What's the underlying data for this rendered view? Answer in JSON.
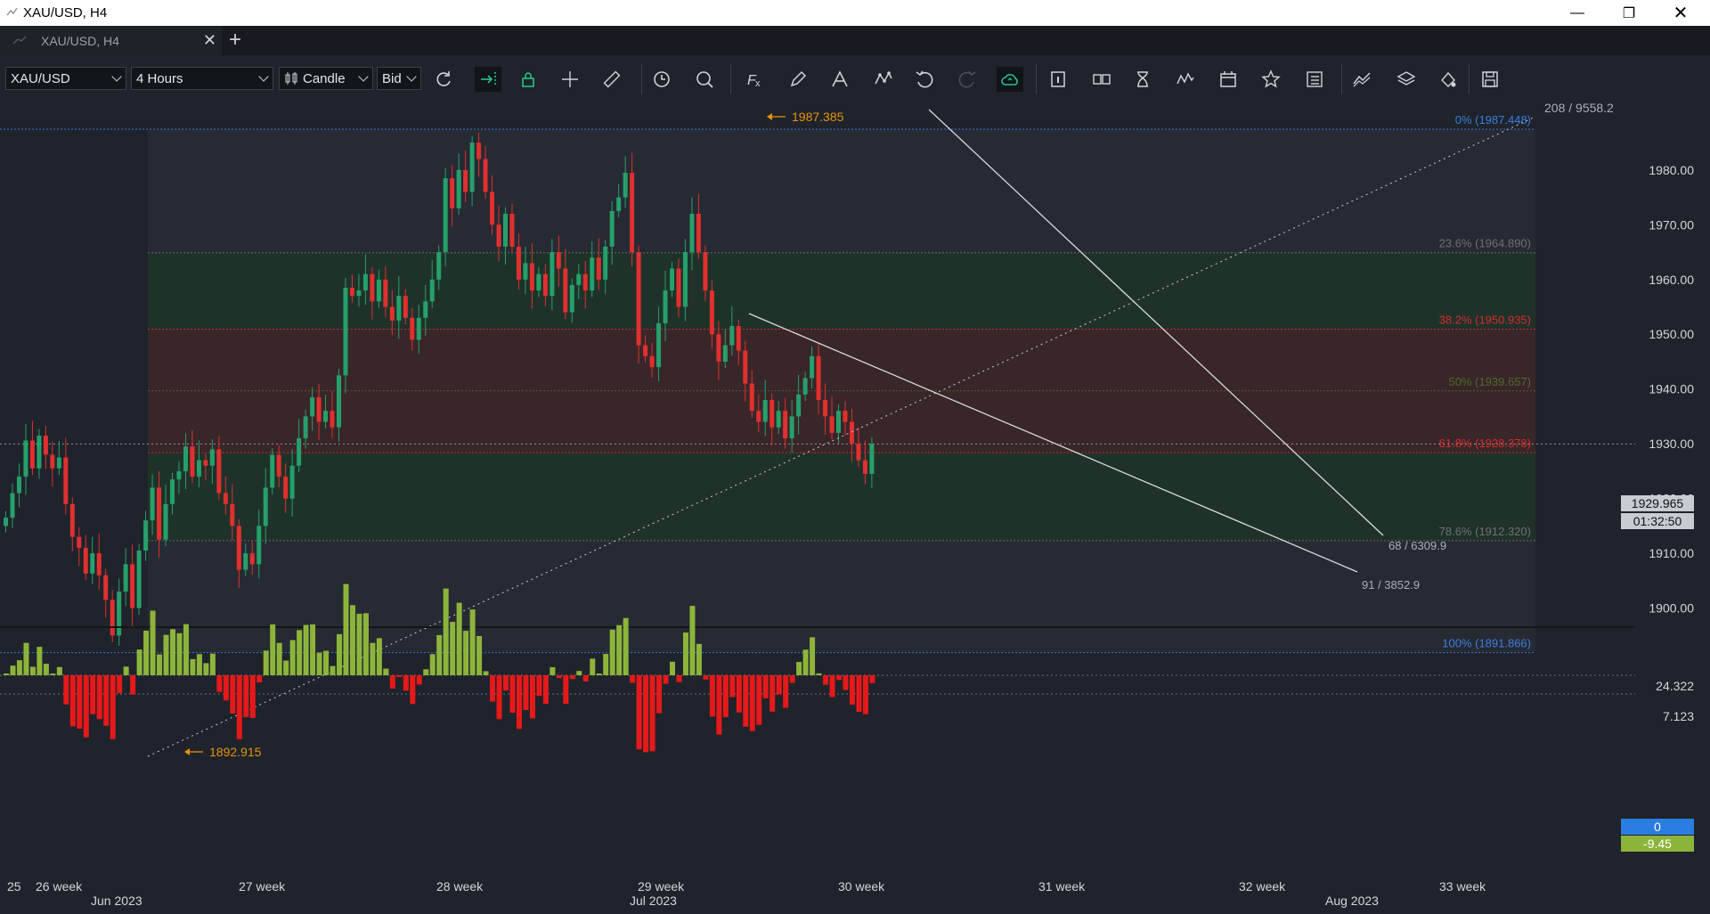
{
  "window": {
    "title": "XAU/USD, H4"
  },
  "tab": {
    "label": "XAU/USD, H4"
  },
  "toolbar": {
    "symbol": "XAU/USD",
    "timeframe": "4 Hours",
    "chart_type": "Candle",
    "price_side": "Bid",
    "icons": [
      "refresh-icon",
      "auto-scroll-icon",
      "lock-icon",
      "crosshair-icon",
      "ruler-icon",
      "clock-icon",
      "zoom-icon",
      "indicators-icon",
      "pencil-icon",
      "text-tool-icon",
      "pattern-icon",
      "undo-icon",
      "redo-icon",
      "cloud-save-icon",
      "info-icon",
      "compare-icon",
      "hourglass-icon",
      "waves-icon",
      "calendar-icon",
      "star-icon",
      "list-icon",
      "strategy-icon",
      "layers-icon",
      "theme-icon",
      "save-icon"
    ]
  },
  "price_axis": {
    "ticks": [
      "1980.00",
      "1970.00",
      "1960.00",
      "1950.00",
      "1940.00",
      "1930.00",
      "1920.00",
      "1910.00",
      "1900.00"
    ]
  },
  "current_price": {
    "value": "1929.965",
    "countdown": "01:32:50",
    "color": "#c7ccd3"
  },
  "oscillator": {
    "max_label": "24.322",
    "tick_label": "7.123",
    "zero_label": "0",
    "last_value": "-9.45",
    "pos_color": "#8db43a",
    "neg_color": "#e6191a"
  },
  "annotations": {
    "high_label": "1987.385",
    "low_label": "1892.915",
    "trend_label": "208 / 9558.2",
    "upper_line_label": "68 / 6309.9",
    "lower_line_label": "91 / 3852.9"
  },
  "fib_levels": [
    {
      "label": "0% (1987.448)",
      "price": 1987.448,
      "color": "#3d7ee0"
    },
    {
      "label": "23.6% (1964.890)",
      "price": 1964.89,
      "color": "#707070"
    },
    {
      "label": "38.2% (1950.935)",
      "price": 1950.935,
      "color": "#d92b2b"
    },
    {
      "label": "50% (1939.657)",
      "price": 1939.657,
      "color": "#4f6a2b"
    },
    {
      "label": "61.8% (1928.378)",
      "price": 1928.378,
      "color": "#d92b2b"
    },
    {
      "label": "78.6% (1912.320)",
      "price": 1912.32,
      "color": "#707070"
    },
    {
      "label": "100% (1891.866)",
      "price": 1891.866,
      "color": "#3d7ee0"
    }
  ],
  "time_axis": {
    "weeks": [
      "25",
      "26 week",
      "27 week",
      "28 week",
      "29 week",
      "30 week",
      "31 week",
      "32 week",
      "33 week"
    ],
    "months": [
      "Jun 2023",
      "Jul 2023",
      "Aug 2023"
    ]
  },
  "chart_data": {
    "type": "candlestick",
    "symbol": "XAU/USD",
    "interval": "H4",
    "ylim": [
      1893,
      1986
    ],
    "up_color": "#26a06a",
    "down_color": "#e0302f",
    "series_note": "OHLC approximated from visible candles, in chronological order",
    "closes": [
      1916.5,
      1921.0,
      1924.0,
      1930.6,
      1925.5,
      1931.5,
      1928.0,
      1925.5,
      1927.5,
      1919.0,
      1913.0,
      1911.0,
      1906.3,
      1910.0,
      1906.0,
      1901.5,
      1895.0,
      1903.0,
      1908.0,
      1900.0,
      1910.5,
      1916.0,
      1922.0,
      1912.5,
      1919.0,
      1923.5,
      1925.0,
      1929.5,
      1924.0,
      1927.0,
      1926.0,
      1929.0,
      1921.0,
      1919.0,
      1915.0,
      1907.0,
      1910.0,
      1908.0,
      1915.0,
      1922.0,
      1928.0,
      1924.0,
      1920.0,
      1926.0,
      1931.0,
      1935.0,
      1938.5,
      1934.0,
      1936.0,
      1933.0,
      1942.5,
      1958.5,
      1957.0,
      1958.0,
      1961.0,
      1956.0,
      1960.0,
      1955.0,
      1952.5,
      1957.0,
      1953.0,
      1949.0,
      1953.0,
      1956.0,
      1960.0,
      1965.0,
      1978.5,
      1973.0,
      1980.0,
      1976.0,
      1985.0,
      1982.0,
      1976.0,
      1970.0,
      1966.0,
      1972.0,
      1966.0,
      1960.0,
      1963.0,
      1958.0,
      1961.0,
      1957.0,
      1965.0,
      1962.0,
      1954.0,
      1959.0,
      1961.0,
      1958.0,
      1964.0,
      1960.0,
      1966.0,
      1972.5,
      1975.0,
      1979.5,
      1965.0,
      1948.0,
      1946.0,
      1944.0,
      1952.0,
      1958.0,
      1962.0,
      1955.0,
      1965.0,
      1972.0,
      1965.0,
      1958.0,
      1950.0,
      1945.0,
      1948.0,
      1951.5,
      1947.0,
      1941.0,
      1936.0,
      1934.0,
      1938.0,
      1933.0,
      1936.0,
      1931.0,
      1935.0,
      1939.0,
      1942.0,
      1946.0,
      1938.0,
      1935.0,
      1932.0,
      1936.0,
      1934.0,
      1930.0,
      1927.0,
      1924.5,
      1930.0
    ]
  }
}
